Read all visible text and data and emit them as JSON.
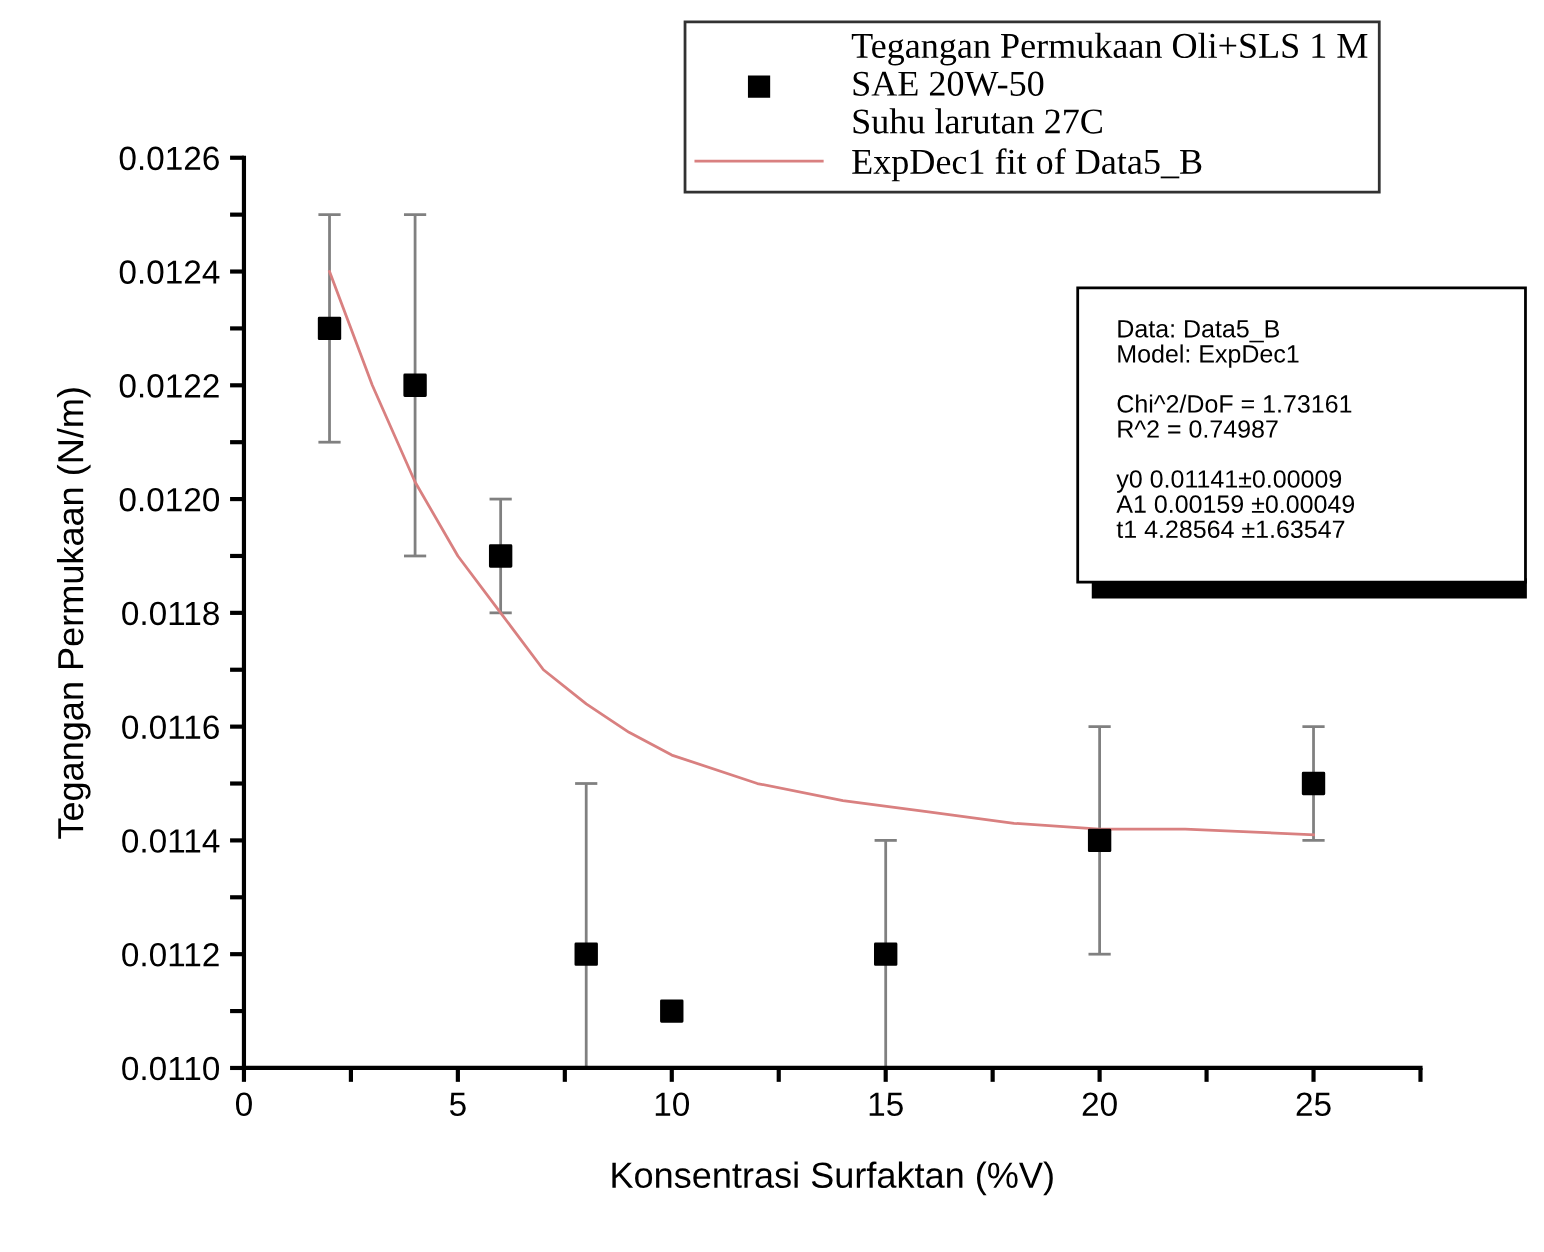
{
  "chart_data": {
    "type": "scatter",
    "xlabel": "Konsentrasi Surfaktan (%V)",
    "ylabel": "Tegangan Permukaan (N/m)",
    "series": [
      {
        "name": "Tegangan Permukaan Oli+SLS 1 M\nSAE 20W-50\nSuhu larutan 27C",
        "color": "#000000",
        "marker": "square",
        "x": [
          2,
          4,
          6,
          8,
          10,
          15,
          20,
          25
        ],
        "values": [
          0.0123,
          0.0122,
          0.0119,
          0.0112,
          0.0111,
          0.0112,
          0.0114,
          0.0115
        ],
        "errors": [
          [
            0.0121,
            0.0125
          ],
          [
            0.0119,
            0.0125
          ],
          [
            0.0118,
            0.012
          ],
          [
            0.011,
            0.0115
          ],
          null,
          [
            0.011,
            0.0114
          ],
          [
            0.0112,
            0.0116
          ],
          [
            0.0114,
            0.0116
          ]
        ]
      },
      {
        "type": "line",
        "name": "ExpDec1 fit of Data5_B",
        "color": "#d98080",
        "marker": "none",
        "line_style": "solid",
        "x": [
          2,
          3,
          4,
          5,
          6,
          7,
          8,
          9,
          10,
          12,
          14,
          16,
          18,
          20,
          22,
          25
        ],
        "values": [
          0.0124,
          0.0122,
          0.01203,
          0.0119,
          0.0118,
          0.0117,
          0.01164,
          0.01159,
          0.01155,
          0.0115,
          0.01147,
          0.01145,
          0.01143,
          0.01142,
          0.01142,
          0.01141
        ]
      }
    ],
    "xlim": [
      0,
      27.5
    ],
    "xticks": [
      0,
      {
        "value": 2.5,
        "label": null
      },
      5,
      {
        "value": 7.5,
        "label": null
      },
      10,
      {
        "value": 12.5,
        "label": null
      },
      15,
      {
        "value": 17.5,
        "label": null
      },
      20,
      {
        "value": 22.5,
        "label": null
      },
      25,
      {
        "value": 27.5,
        "label": null
      }
    ],
    "ylim": [
      0.011,
      0.0126
    ],
    "yticks": [
      {
        "value": 0.011,
        "label": "0.0110"
      },
      {
        "value": 0.0111,
        "label": null
      },
      {
        "value": 0.0112,
        "label": "0.0112"
      },
      {
        "value": 0.0113,
        "label": null
      },
      {
        "value": 0.0114,
        "label": "0.0114"
      },
      {
        "value": 0.0115,
        "label": null
      },
      {
        "value": 0.0116,
        "label": "0.0116"
      },
      {
        "value": 0.0117,
        "label": null
      },
      {
        "value": 0.0118,
        "label": "0.0118"
      },
      {
        "value": 0.0119,
        "label": null
      },
      {
        "value": 0.012,
        "label": "0.0120"
      },
      {
        "value": 0.0121,
        "label": null
      },
      {
        "value": 0.0122,
        "label": "0.0122"
      },
      {
        "value": 0.0123,
        "label": null
      },
      {
        "value": 0.0124,
        "label": "0.0124"
      },
      {
        "value": 0.0125,
        "label": null
      },
      {
        "value": 0.0126,
        "label": "0.0126"
      }
    ],
    "grid": false,
    "legend": "top right",
    "annotations": [
      "Data: Data5_B\nModel: ExpDec1",
      "Chi^2/DoF = 1.73161\nR^2 = 0.74987",
      "y0 0.01141±0.00009\nA1 0.00159 ±0.00049\nt1 4.28564 ±1.63547"
    ]
  }
}
